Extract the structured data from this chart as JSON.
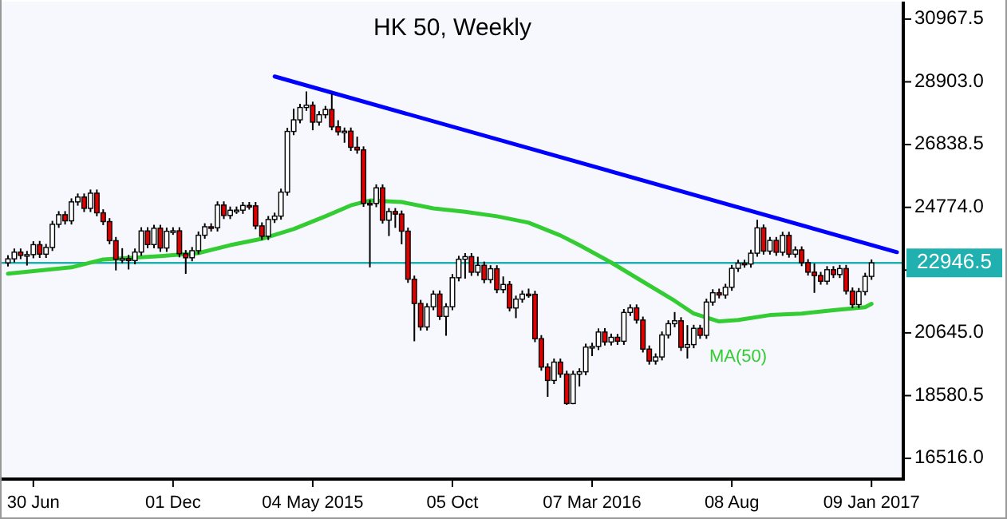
{
  "chart_data": {
    "type": "candlestick",
    "title": "HK 50, Weekly",
    "x": [
      "2014-06-02",
      "2014-06-09",
      "2014-06-16",
      "2014-06-23",
      "2014-06-30",
      "2014-07-07",
      "2014-07-14",
      "2014-07-21",
      "2014-07-28",
      "2014-08-04",
      "2014-08-11",
      "2014-08-18",
      "2014-08-25",
      "2014-09-01",
      "2014-09-08",
      "2014-09-15",
      "2014-09-22",
      "2014-09-29",
      "2014-10-06",
      "2014-10-13",
      "2014-10-20",
      "2014-10-27",
      "2014-11-03",
      "2014-11-10",
      "2014-11-17",
      "2014-11-24",
      "2014-12-01",
      "2014-12-08",
      "2014-12-15",
      "2014-12-22",
      "2014-12-29",
      "2015-01-05",
      "2015-01-12",
      "2015-01-19",
      "2015-01-26",
      "2015-02-02",
      "2015-02-09",
      "2015-02-16",
      "2015-02-23",
      "2015-03-02",
      "2015-03-09",
      "2015-03-16",
      "2015-03-23",
      "2015-03-30",
      "2015-04-06",
      "2015-04-13",
      "2015-04-20",
      "2015-04-27",
      "2015-05-04",
      "2015-05-11",
      "2015-05-18",
      "2015-05-25",
      "2015-06-01",
      "2015-06-08",
      "2015-06-15",
      "2015-06-22",
      "2015-06-29",
      "2015-07-06",
      "2015-07-13",
      "2015-07-20",
      "2015-07-27",
      "2015-08-03",
      "2015-08-10",
      "2015-08-17",
      "2015-08-24",
      "2015-08-31",
      "2015-09-07",
      "2015-09-14",
      "2015-09-21",
      "2015-09-28",
      "2015-10-05",
      "2015-10-12",
      "2015-10-19",
      "2015-10-26",
      "2015-11-02",
      "2015-11-09",
      "2015-11-16",
      "2015-11-23",
      "2015-11-30",
      "2015-12-07",
      "2015-12-14",
      "2015-12-21",
      "2015-12-28",
      "2016-01-04",
      "2016-01-11",
      "2016-01-18",
      "2016-01-25",
      "2016-02-01",
      "2016-02-08",
      "2016-02-15",
      "2016-02-22",
      "2016-02-29",
      "2016-03-07",
      "2016-03-14",
      "2016-03-21",
      "2016-03-28",
      "2016-04-04",
      "2016-04-11",
      "2016-04-18",
      "2016-04-25",
      "2016-05-02",
      "2016-05-09",
      "2016-05-16",
      "2016-05-23",
      "2016-05-30",
      "2016-06-06",
      "2016-06-13",
      "2016-06-20",
      "2016-06-27",
      "2016-07-04",
      "2016-07-11",
      "2016-07-18",
      "2016-07-25",
      "2016-08-01",
      "2016-08-08",
      "2016-08-15",
      "2016-08-22",
      "2016-08-29",
      "2016-09-05",
      "2016-09-12",
      "2016-09-19",
      "2016-09-26",
      "2016-10-03",
      "2016-10-10",
      "2016-10-17",
      "2016-10-24",
      "2016-10-31",
      "2016-11-07",
      "2016-11-14",
      "2016-11-21",
      "2016-11-28",
      "2016-12-05",
      "2016-12-12",
      "2016-12-19",
      "2016-12-26",
      "2017-01-02",
      "2017-01-09"
    ],
    "ohlc": [
      [
        22950,
        23200,
        22830,
        23080
      ],
      [
        23080,
        23420,
        22960,
        23300
      ],
      [
        23300,
        23420,
        23070,
        23195
      ],
      [
        23195,
        23340,
        22860,
        23220
      ],
      [
        23220,
        23660,
        23100,
        23546
      ],
      [
        23546,
        23670,
        23110,
        23234
      ],
      [
        23234,
        23570,
        23110,
        23454
      ],
      [
        23454,
        24330,
        23340,
        24216
      ],
      [
        24216,
        24650,
        24100,
        24532
      ],
      [
        24532,
        24650,
        24210,
        24331
      ],
      [
        24331,
        25070,
        24210,
        24954
      ],
      [
        24954,
        25230,
        24830,
        25112
      ],
      [
        25112,
        25230,
        24620,
        24742
      ],
      [
        24742,
        25360,
        24620,
        25240
      ],
      [
        25240,
        25360,
        24480,
        24595
      ],
      [
        24595,
        24710,
        24190,
        24306
      ],
      [
        24306,
        24420,
        23560,
        23678
      ],
      [
        23678,
        23800,
        22700,
        23064
      ],
      [
        23064,
        23430,
        22940,
        23088
      ],
      [
        23088,
        23210,
        22730,
        23023
      ],
      [
        23023,
        23420,
        22900,
        23302
      ],
      [
        23302,
        24120,
        23180,
        23998
      ],
      [
        23998,
        24120,
        23430,
        23550
      ],
      [
        23550,
        24200,
        23430,
        24087
      ],
      [
        24087,
        24200,
        23310,
        23437
      ],
      [
        23437,
        24110,
        23310,
        23987
      ],
      [
        23987,
        24120,
        23870,
        24002
      ],
      [
        24002,
        24120,
        23130,
        23249
      ],
      [
        23249,
        23370,
        22587,
        23116
      ],
      [
        23116,
        23470,
        23000,
        23349
      ],
      [
        23349,
        23980,
        23230,
        23857
      ],
      [
        23857,
        24250,
        23740,
        24136
      ],
      [
        24136,
        24250,
        23980,
        24103
      ],
      [
        24103,
        24970,
        23980,
        24850
      ],
      [
        24850,
        24970,
        24390,
        24507
      ],
      [
        24507,
        24800,
        24390,
        24679
      ],
      [
        24679,
        24800,
        24560,
        24682
      ],
      [
        24682,
        24950,
        24560,
        24836
      ],
      [
        24836,
        24950,
        24700,
        24823
      ],
      [
        24823,
        24950,
        24050,
        24164
      ],
      [
        24164,
        24280,
        23700,
        23823
      ],
      [
        23823,
        24490,
        23700,
        24375
      ],
      [
        24375,
        24600,
        24260,
        24486
      ],
      [
        24486,
        25390,
        24370,
        25275
      ],
      [
        25275,
        27390,
        25160,
        27272
      ],
      [
        27272,
        28020,
        27150,
        27653
      ],
      [
        27653,
        28180,
        27540,
        28060
      ],
      [
        28060,
        28588,
        27950,
        28133
      ],
      [
        28133,
        28250,
        27310,
        27577
      ],
      [
        27577,
        27940,
        27460,
        27822
      ],
      [
        27822,
        28110,
        27700,
        27993
      ],
      [
        27993,
        28520,
        27310,
        27424
      ],
      [
        27424,
        27640,
        27140,
        27260
      ],
      [
        27260,
        27400,
        26900,
        27280
      ],
      [
        27280,
        27400,
        26630,
        26750
      ],
      [
        26750,
        27100,
        26540,
        26663
      ],
      [
        26663,
        26780,
        24790,
        24905
      ],
      [
        24905,
        25020,
        22800,
        24901
      ],
      [
        24901,
        25530,
        24780,
        25415
      ],
      [
        25415,
        25530,
        24240,
        24352
      ],
      [
        24352,
        24750,
        23830,
        24636
      ],
      [
        24636,
        24750,
        24100,
        24552
      ],
      [
        24552,
        24670,
        23560,
        23991
      ],
      [
        23991,
        24110,
        22290,
        22410
      ],
      [
        22410,
        22530,
        20368,
        21612
      ],
      [
        21612,
        21730,
        20720,
        20840
      ],
      [
        20840,
        21620,
        20720,
        21504
      ],
      [
        21504,
        22040,
        21390,
        21920
      ],
      [
        21920,
        22040,
        21070,
        21186
      ],
      [
        21186,
        21620,
        20550,
        21506
      ],
      [
        21506,
        22580,
        21390,
        22459
      ],
      [
        22459,
        23180,
        22340,
        23067
      ],
      [
        23067,
        23270,
        22430,
        23152
      ],
      [
        23152,
        23270,
        22520,
        22640
      ],
      [
        22640,
        23150,
        22520,
        22867
      ],
      [
        22867,
        22990,
        22280,
        22397
      ],
      [
        22397,
        22870,
        22280,
        22754
      ],
      [
        22754,
        22870,
        21950,
        22068
      ],
      [
        22068,
        22500,
        21950,
        22236
      ],
      [
        22236,
        22350,
        21350,
        21464
      ],
      [
        21464,
        21870,
        21130,
        21755
      ],
      [
        21755,
        22040,
        21640,
        21919
      ],
      [
        21919,
        22100,
        21800,
        21914
      ],
      [
        21914,
        22030,
        20340,
        20454
      ],
      [
        20454,
        20570,
        19400,
        19520
      ],
      [
        19520,
        19640,
        18540,
        19081
      ],
      [
        19081,
        19800,
        18960,
        19683
      ],
      [
        19683,
        19800,
        19170,
        19289
      ],
      [
        19289,
        19400,
        18278,
        18320
      ],
      [
        18320,
        19400,
        18300,
        19286
      ],
      [
        19286,
        19480,
        18880,
        19364
      ],
      [
        19364,
        20290,
        19250,
        20177
      ],
      [
        20177,
        20320,
        19880,
        20199
      ],
      [
        20199,
        20790,
        20080,
        20672
      ],
      [
        20672,
        20800,
        20230,
        20346
      ],
      [
        20346,
        20620,
        20230,
        20498
      ],
      [
        20498,
        20610,
        20250,
        20370
      ],
      [
        20370,
        21430,
        20250,
        21316
      ],
      [
        21316,
        21580,
        21200,
        21467
      ],
      [
        21467,
        21580,
        20950,
        21067
      ],
      [
        21067,
        21180,
        20000,
        20110
      ],
      [
        20110,
        20230,
        19600,
        19719
      ],
      [
        19719,
        19970,
        19600,
        19852
      ],
      [
        19852,
        20690,
        19740,
        20576
      ],
      [
        20576,
        21060,
        20460,
        20947
      ],
      [
        20947,
        21330,
        20830,
        21042
      ],
      [
        21042,
        21160,
        20050,
        20169
      ],
      [
        20169,
        20900,
        19800,
        20259
      ],
      [
        20259,
        20910,
        20140,
        20794
      ],
      [
        20794,
        20910,
        20450,
        20564
      ],
      [
        20564,
        21770,
        20450,
        21659
      ],
      [
        21659,
        22080,
        21540,
        21964
      ],
      [
        21964,
        22100,
        21780,
        21891
      ],
      [
        21891,
        22260,
        21770,
        22146
      ],
      [
        22146,
        22880,
        22030,
        22767
      ],
      [
        22767,
        23050,
        22650,
        22937
      ],
      [
        22937,
        23050,
        22790,
        22910
      ],
      [
        22910,
        23380,
        22790,
        23266
      ],
      [
        23266,
        24364,
        23150,
        24099
      ],
      [
        24099,
        24210,
        23220,
        23335
      ],
      [
        23335,
        23800,
        23220,
        23686
      ],
      [
        23686,
        23800,
        23180,
        23297
      ],
      [
        23297,
        23970,
        23180,
        23852
      ],
      [
        23852,
        23970,
        23120,
        23233
      ],
      [
        23233,
        23490,
        23120,
        23374
      ],
      [
        23374,
        23490,
        22840,
        22954
      ],
      [
        22954,
        23070,
        22530,
        22642
      ],
      [
        22642,
        22930,
        21960,
        22531
      ],
      [
        22531,
        22650,
        22230,
        22344
      ],
      [
        22344,
        22840,
        22230,
        22723
      ],
      [
        22723,
        22840,
        22450,
        22564
      ],
      [
        22564,
        22880,
        22450,
        22760
      ],
      [
        22760,
        22880,
        21910,
        22020
      ],
      [
        22020,
        22140,
        21460,
        21575
      ],
      [
        21575,
        22120,
        21460,
        22001
      ],
      [
        22001,
        22620,
        21880,
        22503
      ],
      [
        22503,
        23060,
        22390,
        22946.5
      ]
    ],
    "series": [
      {
        "type": "line",
        "name": "MA(50)",
        "color": "#33cc33",
        "x": [
          "2014-06-02",
          "2014-08-11",
          "2014-09-15",
          "2014-11-17",
          "2014-12-29",
          "2015-02-02",
          "2015-03-09",
          "2015-04-13",
          "2015-05-18",
          "2015-06-15",
          "2015-07-06",
          "2015-08-10",
          "2015-09-14",
          "2015-10-19",
          "2015-11-23",
          "2015-12-28",
          "2016-02-01",
          "2016-02-22",
          "2016-03-28",
          "2016-05-02",
          "2016-06-06",
          "2016-06-27",
          "2016-07-25",
          "2016-08-15",
          "2016-09-19",
          "2016-10-24",
          "2016-11-28",
          "2017-01-02",
          "2017-01-09"
        ],
        "values": [
          22590,
          22800,
          23060,
          23170,
          23270,
          23530,
          23740,
          24060,
          24480,
          24840,
          25000,
          24950,
          24740,
          24630,
          24480,
          24270,
          23850,
          23530,
          22960,
          22330,
          21700,
          21280,
          21020,
          21070,
          21230,
          21280,
          21390,
          21490,
          21600
        ]
      },
      {
        "type": "line",
        "color": "#0000ff",
        "x": [
          "2015-03-23",
          "2017-02-06"
        ],
        "values": [
          29080,
          23300
        ]
      }
    ],
    "xlim": [
      "2014-05-26",
      "2017-02-13"
    ],
    "xticks": [
      {
        "value": "2014-06-30",
        "label": "30 Jun"
      },
      {
        "value": "2014-12-01",
        "label": "01 Dec"
      },
      {
        "value": "2015-05-04",
        "label": "04 May 2015"
      },
      {
        "value": "2015-10-05",
        "label": "05 Oct"
      },
      {
        "value": "2016-03-07",
        "label": "07 Mar 2016"
      },
      {
        "value": "2016-08-08",
        "label": "08 Aug"
      },
      {
        "value": "2017-01-09",
        "label": "09 Jan 2017"
      }
    ],
    "ylim": [
      15835,
      31543
    ],
    "yticks": [
      {
        "value": 16516,
        "label": "16516.0"
      },
      {
        "value": 18580.5,
        "label": "18580.5"
      },
      {
        "value": 20645,
        "label": "20645.0"
      },
      {
        "value": 22709.5,
        "label": null
      },
      {
        "value": 24774,
        "label": "24774.0"
      },
      {
        "value": 26838.5,
        "label": "26838.5"
      },
      {
        "value": 28903,
        "label": "28903.0"
      },
      30967.5
    ],
    "ref_lines": [
      {
        "axis": "y",
        "value": 22946.5,
        "label": "22946.5",
        "color": "#20b0b0"
      }
    ],
    "grid": false
  }
}
